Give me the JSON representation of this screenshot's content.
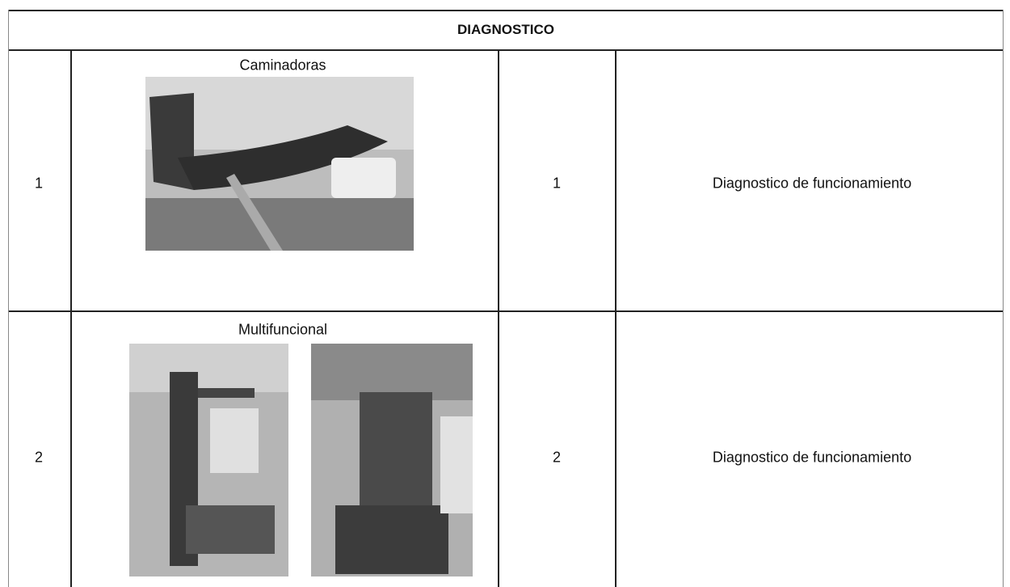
{
  "table": {
    "title": "DIAGNOSTICO",
    "rows": [
      [
        "1",
        "Caminadoras",
        "1",
        "Diagnostico de funcionamiento"
      ],
      [
        "2",
        "Multifuncional",
        "2",
        "Diagnostico de funcionamiento"
      ]
    ]
  }
}
